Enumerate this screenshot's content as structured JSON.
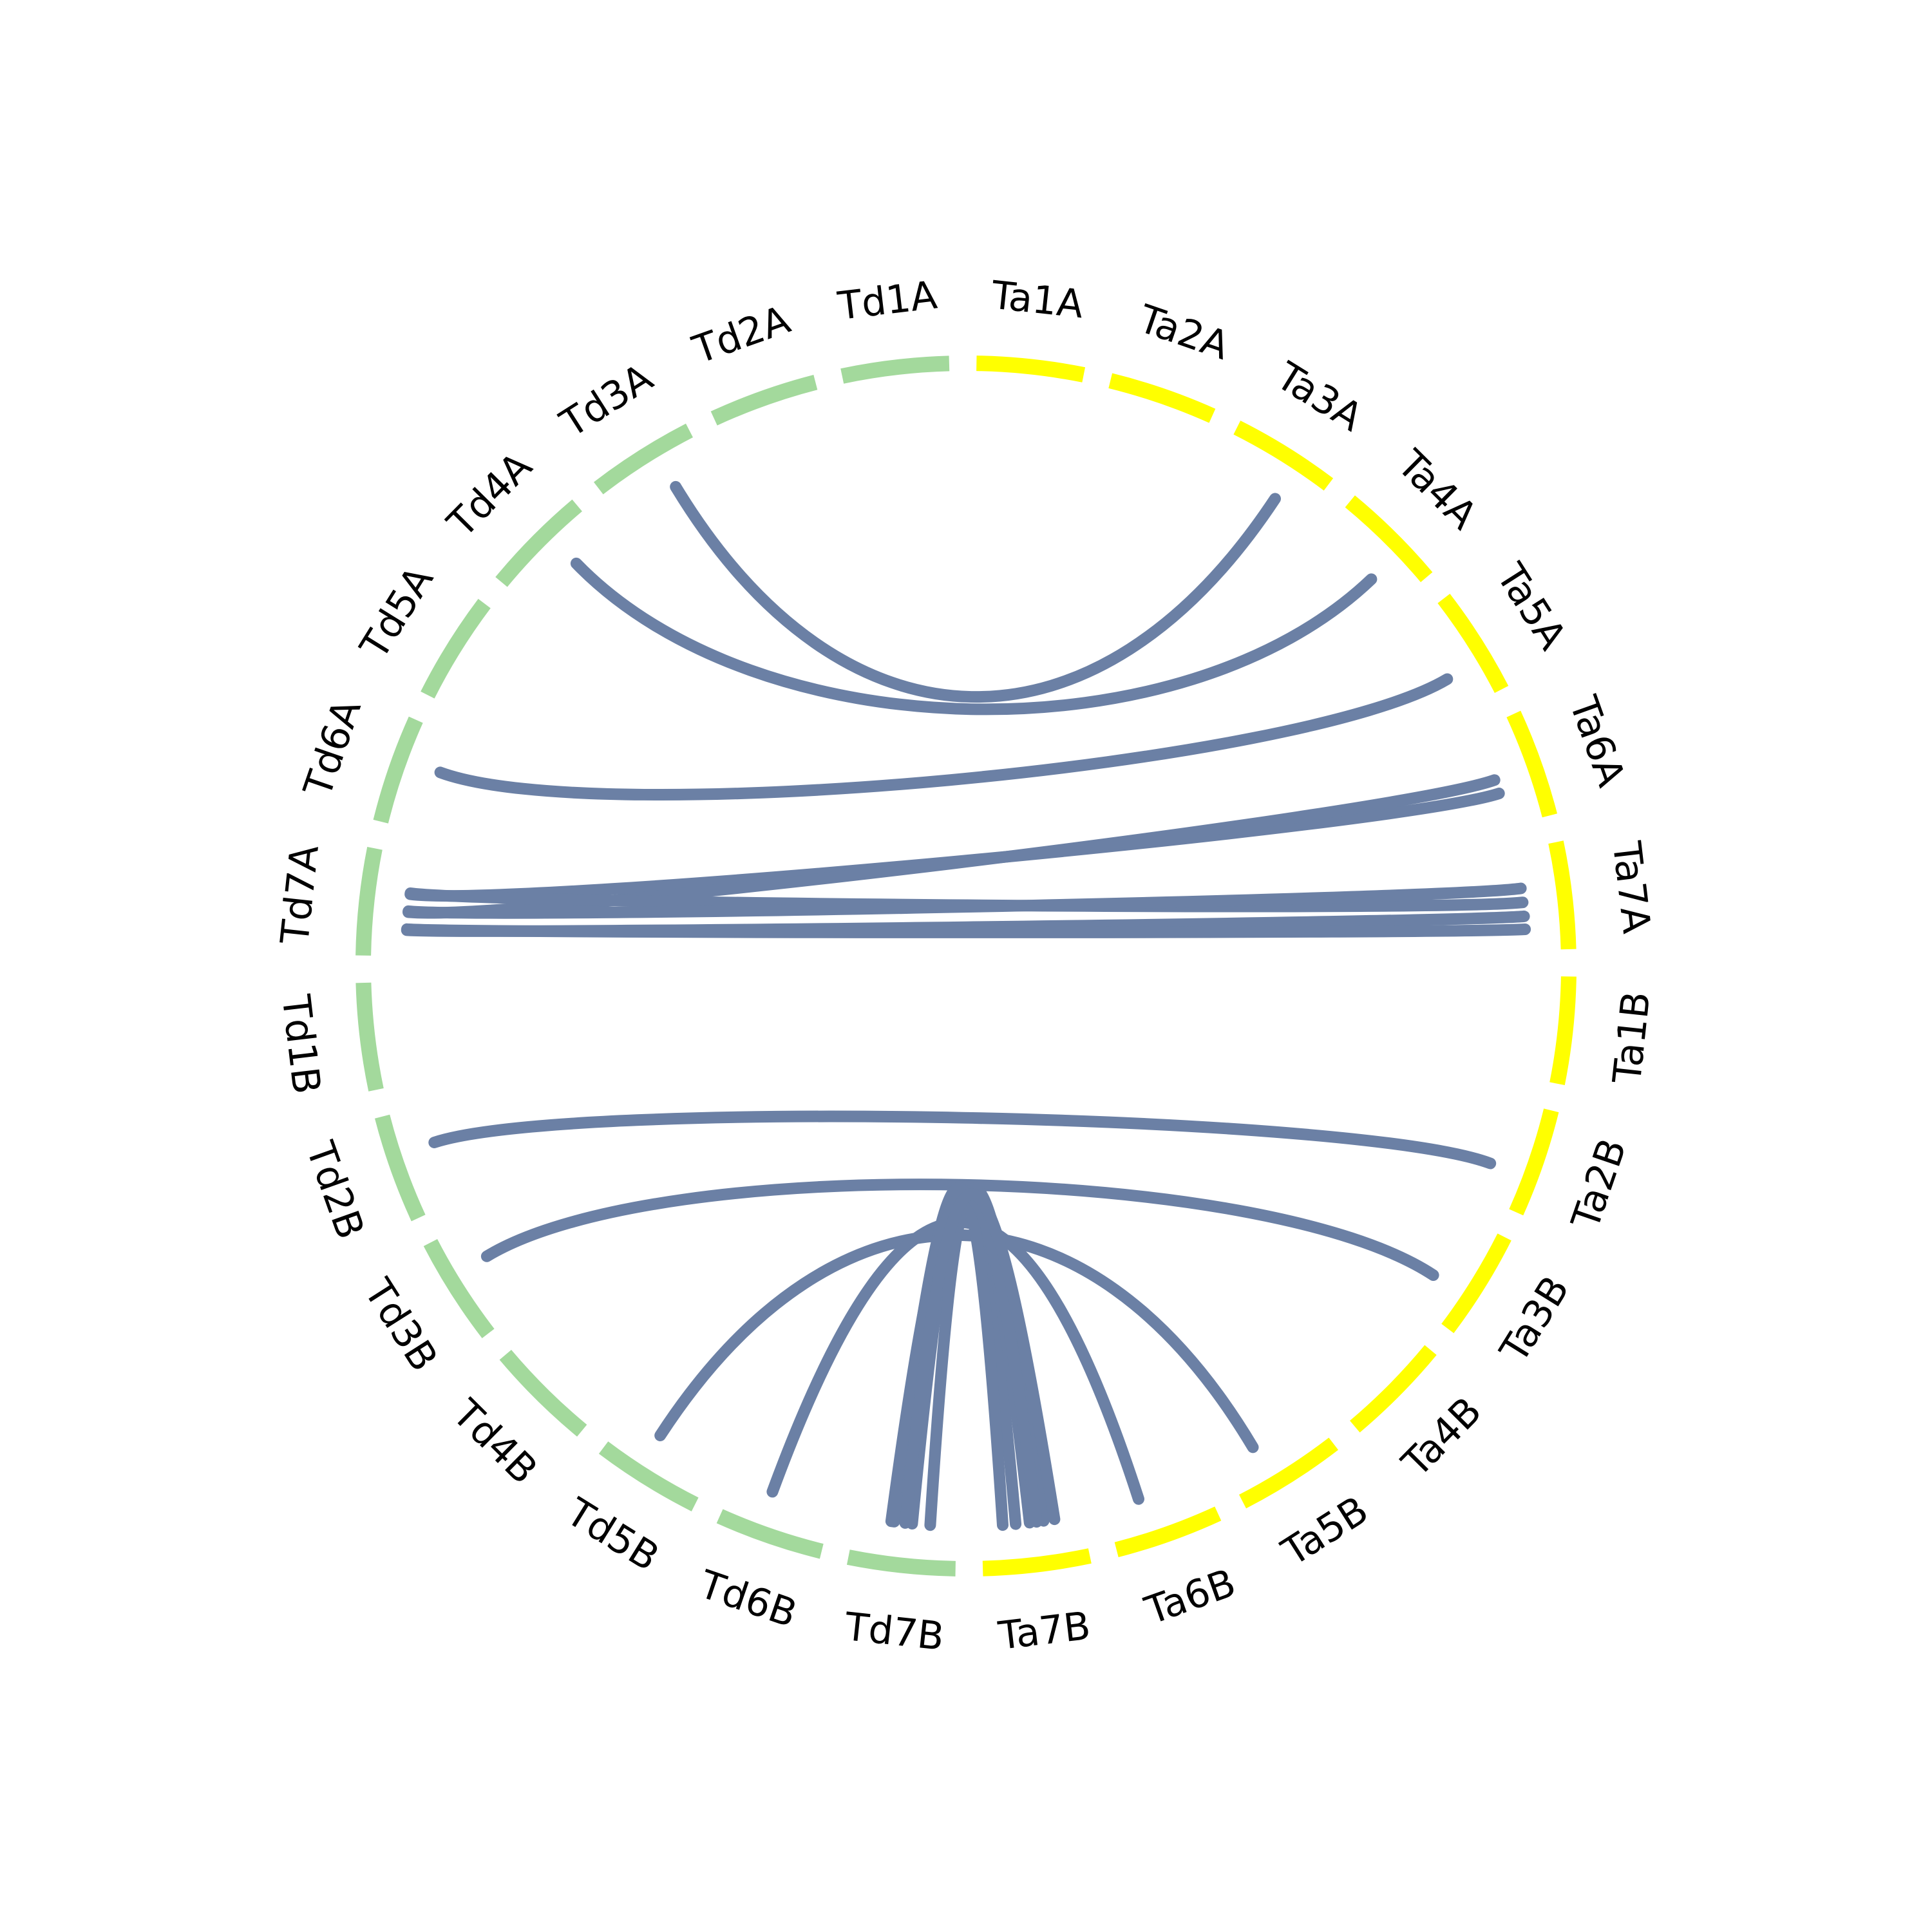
{
  "diagram": {
    "type": "circos",
    "link_color": "#6b80a5",
    "groups": [
      {
        "name": "Td",
        "color": "#a3d99c"
      },
      {
        "name": "Ta",
        "color": "#ffff00"
      }
    ],
    "segments": [
      {
        "id": "Ta1A",
        "label": "Ta1A",
        "group": "Ta"
      },
      {
        "id": "Ta2A",
        "label": "Ta2A",
        "group": "Ta"
      },
      {
        "id": "Ta3A",
        "label": "Ta3A",
        "group": "Ta"
      },
      {
        "id": "Ta4A",
        "label": "Ta4A",
        "group": "Ta"
      },
      {
        "id": "Ta5A",
        "label": "Ta5A",
        "group": "Ta"
      },
      {
        "id": "Ta6A",
        "label": "Ta6A",
        "group": "Ta"
      },
      {
        "id": "Ta7A",
        "label": "Ta7A",
        "group": "Ta"
      },
      {
        "id": "Ta1B",
        "label": "Ta1B",
        "group": "Ta"
      },
      {
        "id": "Ta2B",
        "label": "Ta2B",
        "group": "Ta"
      },
      {
        "id": "Ta3B",
        "label": "Ta3B",
        "group": "Ta"
      },
      {
        "id": "Ta4B",
        "label": "Ta4B",
        "group": "Ta"
      },
      {
        "id": "Ta5B",
        "label": "Ta5B",
        "group": "Ta"
      },
      {
        "id": "Ta6B",
        "label": "Ta6B",
        "group": "Ta"
      },
      {
        "id": "Ta7B",
        "label": "Ta7B",
        "group": "Ta"
      },
      {
        "id": "Td7B",
        "label": "Td7B",
        "group": "Td"
      },
      {
        "id": "Td6B",
        "label": "Td6B",
        "group": "Td"
      },
      {
        "id": "Td5B",
        "label": "Td5B",
        "group": "Td"
      },
      {
        "id": "Td4B",
        "label": "Td4B",
        "group": "Td"
      },
      {
        "id": "Td3B",
        "label": "Td3B",
        "group": "Td"
      },
      {
        "id": "Td2B",
        "label": "Td2B",
        "group": "Td"
      },
      {
        "id": "Td1B",
        "label": "Td1B",
        "group": "Td"
      },
      {
        "id": "Td7A",
        "label": "Td7A",
        "group": "Td"
      },
      {
        "id": "Td6A",
        "label": "Td6A",
        "group": "Td"
      },
      {
        "id": "Td5A",
        "label": "Td5A",
        "group": "Td"
      },
      {
        "id": "Td4A",
        "label": "Td4A",
        "group": "Td"
      },
      {
        "id": "Td3A",
        "label": "Td3A",
        "group": "Td"
      },
      {
        "id": "Td2A",
        "label": "Td2A",
        "group": "Td"
      },
      {
        "id": "Td1A",
        "label": "Td1A",
        "group": "Td"
      }
    ],
    "links": [
      {
        "from": "Td3A",
        "to": "Ta3A"
      },
      {
        "from": "Td4A",
        "to": "Ta4A"
      },
      {
        "from": "Td6A",
        "to": "Ta5A"
      },
      {
        "from": "Td7A",
        "to": "Ta6A"
      },
      {
        "from": "Td7A",
        "to": "Ta6A"
      },
      {
        "from": "Td7A",
        "to": "Ta7A"
      },
      {
        "from": "Td7A",
        "to": "Ta7A"
      },
      {
        "from": "Td7A",
        "to": "Ta7A"
      },
      {
        "from": "Td7A",
        "to": "Ta7A"
      },
      {
        "from": "Td2B",
        "to": "Ta2B"
      },
      {
        "from": "Td3B",
        "to": "Ta3B"
      },
      {
        "from": "Td5B",
        "to": "Ta5B"
      },
      {
        "from": "Td6B",
        "to": "Ta6B"
      },
      {
        "from": "Td7B",
        "to": "Ta7B"
      },
      {
        "from": "Td7B",
        "to": "Ta7B"
      },
      {
        "from": "Td7B",
        "to": "Ta7B"
      },
      {
        "from": "Td7B",
        "to": "Ta7B"
      },
      {
        "from": "Ta7B",
        "to": "Td7B"
      },
      {
        "from": "Ta7B",
        "to": "Td7B"
      }
    ]
  }
}
